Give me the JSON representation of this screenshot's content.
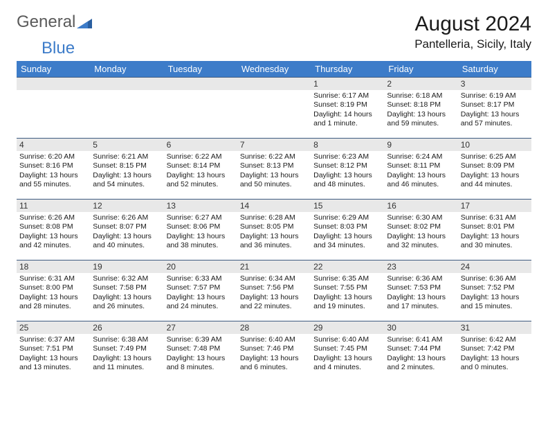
{
  "logo": {
    "word1": "General",
    "word2": "Blue"
  },
  "month_title": "August 2024",
  "location": "Pantelleria, Sicily, Italy",
  "weekdays": [
    "Sunday",
    "Monday",
    "Tuesday",
    "Wednesday",
    "Thursday",
    "Friday",
    "Saturday"
  ],
  "colors": {
    "header_bg": "#3d7cc9",
    "header_text": "#ffffff",
    "daynum_bg": "#e8e8e8",
    "cell_border": "#3d5a80",
    "logo_gray": "#5a5a5a",
    "logo_blue": "#3d7cc9"
  },
  "weeks": [
    [
      {
        "n": "",
        "lines": []
      },
      {
        "n": "",
        "lines": []
      },
      {
        "n": "",
        "lines": []
      },
      {
        "n": "",
        "lines": []
      },
      {
        "n": "1",
        "lines": [
          "Sunrise: 6:17 AM",
          "Sunset: 8:19 PM",
          "Daylight: 14 hours",
          "and 1 minute."
        ]
      },
      {
        "n": "2",
        "lines": [
          "Sunrise: 6:18 AM",
          "Sunset: 8:18 PM",
          "Daylight: 13 hours",
          "and 59 minutes."
        ]
      },
      {
        "n": "3",
        "lines": [
          "Sunrise: 6:19 AM",
          "Sunset: 8:17 PM",
          "Daylight: 13 hours",
          "and 57 minutes."
        ]
      }
    ],
    [
      {
        "n": "4",
        "lines": [
          "Sunrise: 6:20 AM",
          "Sunset: 8:16 PM",
          "Daylight: 13 hours",
          "and 55 minutes."
        ]
      },
      {
        "n": "5",
        "lines": [
          "Sunrise: 6:21 AM",
          "Sunset: 8:15 PM",
          "Daylight: 13 hours",
          "and 54 minutes."
        ]
      },
      {
        "n": "6",
        "lines": [
          "Sunrise: 6:22 AM",
          "Sunset: 8:14 PM",
          "Daylight: 13 hours",
          "and 52 minutes."
        ]
      },
      {
        "n": "7",
        "lines": [
          "Sunrise: 6:22 AM",
          "Sunset: 8:13 PM",
          "Daylight: 13 hours",
          "and 50 minutes."
        ]
      },
      {
        "n": "8",
        "lines": [
          "Sunrise: 6:23 AM",
          "Sunset: 8:12 PM",
          "Daylight: 13 hours",
          "and 48 minutes."
        ]
      },
      {
        "n": "9",
        "lines": [
          "Sunrise: 6:24 AM",
          "Sunset: 8:11 PM",
          "Daylight: 13 hours",
          "and 46 minutes."
        ]
      },
      {
        "n": "10",
        "lines": [
          "Sunrise: 6:25 AM",
          "Sunset: 8:09 PM",
          "Daylight: 13 hours",
          "and 44 minutes."
        ]
      }
    ],
    [
      {
        "n": "11",
        "lines": [
          "Sunrise: 6:26 AM",
          "Sunset: 8:08 PM",
          "Daylight: 13 hours",
          "and 42 minutes."
        ]
      },
      {
        "n": "12",
        "lines": [
          "Sunrise: 6:26 AM",
          "Sunset: 8:07 PM",
          "Daylight: 13 hours",
          "and 40 minutes."
        ]
      },
      {
        "n": "13",
        "lines": [
          "Sunrise: 6:27 AM",
          "Sunset: 8:06 PM",
          "Daylight: 13 hours",
          "and 38 minutes."
        ]
      },
      {
        "n": "14",
        "lines": [
          "Sunrise: 6:28 AM",
          "Sunset: 8:05 PM",
          "Daylight: 13 hours",
          "and 36 minutes."
        ]
      },
      {
        "n": "15",
        "lines": [
          "Sunrise: 6:29 AM",
          "Sunset: 8:03 PM",
          "Daylight: 13 hours",
          "and 34 minutes."
        ]
      },
      {
        "n": "16",
        "lines": [
          "Sunrise: 6:30 AM",
          "Sunset: 8:02 PM",
          "Daylight: 13 hours",
          "and 32 minutes."
        ]
      },
      {
        "n": "17",
        "lines": [
          "Sunrise: 6:31 AM",
          "Sunset: 8:01 PM",
          "Daylight: 13 hours",
          "and 30 minutes."
        ]
      }
    ],
    [
      {
        "n": "18",
        "lines": [
          "Sunrise: 6:31 AM",
          "Sunset: 8:00 PM",
          "Daylight: 13 hours",
          "and 28 minutes."
        ]
      },
      {
        "n": "19",
        "lines": [
          "Sunrise: 6:32 AM",
          "Sunset: 7:58 PM",
          "Daylight: 13 hours",
          "and 26 minutes."
        ]
      },
      {
        "n": "20",
        "lines": [
          "Sunrise: 6:33 AM",
          "Sunset: 7:57 PM",
          "Daylight: 13 hours",
          "and 24 minutes."
        ]
      },
      {
        "n": "21",
        "lines": [
          "Sunrise: 6:34 AM",
          "Sunset: 7:56 PM",
          "Daylight: 13 hours",
          "and 22 minutes."
        ]
      },
      {
        "n": "22",
        "lines": [
          "Sunrise: 6:35 AM",
          "Sunset: 7:55 PM",
          "Daylight: 13 hours",
          "and 19 minutes."
        ]
      },
      {
        "n": "23",
        "lines": [
          "Sunrise: 6:36 AM",
          "Sunset: 7:53 PM",
          "Daylight: 13 hours",
          "and 17 minutes."
        ]
      },
      {
        "n": "24",
        "lines": [
          "Sunrise: 6:36 AM",
          "Sunset: 7:52 PM",
          "Daylight: 13 hours",
          "and 15 minutes."
        ]
      }
    ],
    [
      {
        "n": "25",
        "lines": [
          "Sunrise: 6:37 AM",
          "Sunset: 7:51 PM",
          "Daylight: 13 hours",
          "and 13 minutes."
        ]
      },
      {
        "n": "26",
        "lines": [
          "Sunrise: 6:38 AM",
          "Sunset: 7:49 PM",
          "Daylight: 13 hours",
          "and 11 minutes."
        ]
      },
      {
        "n": "27",
        "lines": [
          "Sunrise: 6:39 AM",
          "Sunset: 7:48 PM",
          "Daylight: 13 hours",
          "and 8 minutes."
        ]
      },
      {
        "n": "28",
        "lines": [
          "Sunrise: 6:40 AM",
          "Sunset: 7:46 PM",
          "Daylight: 13 hours",
          "and 6 minutes."
        ]
      },
      {
        "n": "29",
        "lines": [
          "Sunrise: 6:40 AM",
          "Sunset: 7:45 PM",
          "Daylight: 13 hours",
          "and 4 minutes."
        ]
      },
      {
        "n": "30",
        "lines": [
          "Sunrise: 6:41 AM",
          "Sunset: 7:44 PM",
          "Daylight: 13 hours",
          "and 2 minutes."
        ]
      },
      {
        "n": "31",
        "lines": [
          "Sunrise: 6:42 AM",
          "Sunset: 7:42 PM",
          "Daylight: 13 hours",
          "and 0 minutes."
        ]
      }
    ]
  ]
}
